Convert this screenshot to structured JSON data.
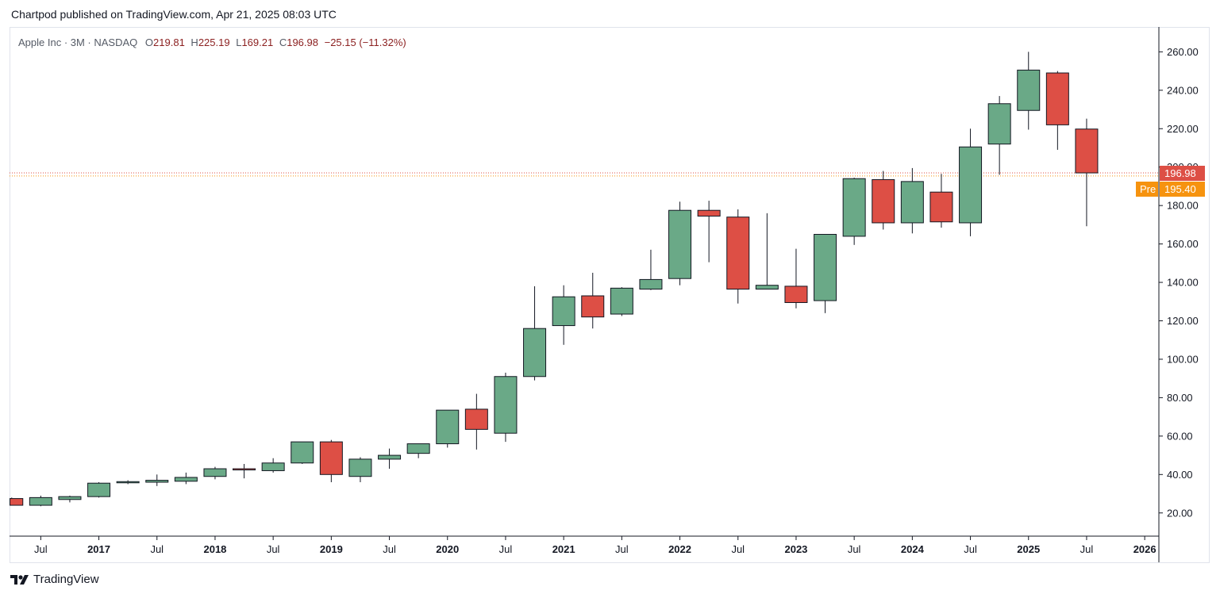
{
  "header": {
    "publisher_text": "Chartpod published on TradingView.com, Apr 21, 2025 08:03 UTC"
  },
  "legend": {
    "symbol": "Apple Inc · 3M · NASDAQ",
    "o_label": "O",
    "open": "219.81",
    "h_label": "H",
    "high": "225.19",
    "l_label": "L",
    "low": "169.21",
    "c_label": "C",
    "close": "196.98",
    "change": "−25.15 (−11.32%)"
  },
  "price_badges": {
    "last": "196.98",
    "pre_label": "Pre",
    "pre": "195.40"
  },
  "footer": {
    "brand": "TradingView"
  },
  "colors": {
    "up": "#6aa987",
    "down": "#dd4f45",
    "grid_border": "#e0e3eb",
    "pre": "#f6930f"
  },
  "chart_data": {
    "type": "candlestick",
    "title": "Apple Inc · 3M · NASDAQ",
    "ylim": [
      10,
      270
    ],
    "y_ticks": [
      20,
      40,
      60,
      80,
      100,
      120,
      140,
      160,
      180,
      200,
      220,
      240,
      260
    ],
    "y_tick_labels": [
      "20.00",
      "40.00",
      "60.00",
      "80.00",
      "100.00",
      "120.00",
      "140.00",
      "160.00",
      "180.00",
      "200.00",
      "220.00",
      "240.00",
      "260.00"
    ],
    "last_price": 196.98,
    "pre_price": 195.4,
    "x_labels": [
      {
        "label": "Jul",
        "pos": 1,
        "year": false
      },
      {
        "label": "2017",
        "pos": 3,
        "year": true
      },
      {
        "label": "Jul",
        "pos": 5,
        "year": false
      },
      {
        "label": "2018",
        "pos": 7,
        "year": true
      },
      {
        "label": "Jul",
        "pos": 9,
        "year": false
      },
      {
        "label": "2019",
        "pos": 11,
        "year": true
      },
      {
        "label": "Jul",
        "pos": 13,
        "year": false
      },
      {
        "label": "2020",
        "pos": 15,
        "year": true
      },
      {
        "label": "Jul",
        "pos": 17,
        "year": false
      },
      {
        "label": "2021",
        "pos": 19,
        "year": true
      },
      {
        "label": "Jul",
        "pos": 21,
        "year": false
      },
      {
        "label": "2022",
        "pos": 23,
        "year": true
      },
      {
        "label": "Jul",
        "pos": 25,
        "year": false
      },
      {
        "label": "2023",
        "pos": 27,
        "year": true
      },
      {
        "label": "Jul",
        "pos": 29,
        "year": false
      },
      {
        "label": "2024",
        "pos": 31,
        "year": true
      },
      {
        "label": "Jul",
        "pos": 33,
        "year": false
      },
      {
        "label": "2025",
        "pos": 35,
        "year": true
      },
      {
        "label": "Jul",
        "pos": 37,
        "year": false
      },
      {
        "label": "2026",
        "pos": 39,
        "year": true
      }
    ],
    "candles": [
      {
        "period": "2016 Q1",
        "open": 27.5,
        "high": 28.0,
        "low": 24.0,
        "close": 24.0
      },
      {
        "period": "2016 Q2",
        "open": 24.0,
        "high": 29.0,
        "low": 23.5,
        "close": 28.0
      },
      {
        "period": "2016 Q3",
        "open": 27.0,
        "high": 29.0,
        "low": 25.5,
        "close": 28.5
      },
      {
        "period": "2016 Q4",
        "open": 28.5,
        "high": 36.0,
        "low": 28.0,
        "close": 35.5
      },
      {
        "period": "2017 Q1",
        "open": 36.0,
        "high": 37.0,
        "low": 35.0,
        "close": 36.3
      },
      {
        "period": "2017 Q2",
        "open": 36.0,
        "high": 40.0,
        "low": 34.0,
        "close": 37.0
      },
      {
        "period": "2017 Q3",
        "open": 36.5,
        "high": 41.0,
        "low": 35.0,
        "close": 38.5
      },
      {
        "period": "2017 Q4",
        "open": 39.0,
        "high": 44.0,
        "low": 37.5,
        "close": 43.0
      },
      {
        "period": "2018 Q1",
        "open": 43.0,
        "high": 45.5,
        "low": 38.0,
        "close": 42.5
      },
      {
        "period": "2018 Q2",
        "open": 42.0,
        "high": 48.5,
        "low": 41.0,
        "close": 46.0
      },
      {
        "period": "2018 Q3",
        "open": 46.0,
        "high": 57.0,
        "low": 45.5,
        "close": 57.0
      },
      {
        "period": "2018 Q4",
        "open": 57.0,
        "high": 58.0,
        "low": 36.0,
        "close": 40.0
      },
      {
        "period": "2019 Q1",
        "open": 39.0,
        "high": 49.0,
        "low": 36.0,
        "close": 48.0
      },
      {
        "period": "2019 Q2",
        "open": 48.0,
        "high": 53.5,
        "low": 43.0,
        "close": 50.0
      },
      {
        "period": "2019 Q3",
        "open": 51.0,
        "high": 56.0,
        "low": 48.5,
        "close": 56.0
      },
      {
        "period": "2019 Q4",
        "open": 56.0,
        "high": 73.5,
        "low": 54.0,
        "close": 73.5
      },
      {
        "period": "2020 Q1",
        "open": 74.0,
        "high": 82.0,
        "low": 53.0,
        "close": 63.5
      },
      {
        "period": "2020 Q2",
        "open": 61.5,
        "high": 93.0,
        "low": 57.0,
        "close": 91.0
      },
      {
        "period": "2020 Q3",
        "open": 91.0,
        "high": 138.0,
        "low": 89.0,
        "close": 116.0
      },
      {
        "period": "2020 Q4",
        "open": 117.5,
        "high": 138.5,
        "low": 107.5,
        "close": 132.5
      },
      {
        "period": "2021 Q1",
        "open": 133.0,
        "high": 145.0,
        "low": 116.0,
        "close": 122.0
      },
      {
        "period": "2021 Q2",
        "open": 123.5,
        "high": 137.5,
        "low": 122.5,
        "close": 137.0
      },
      {
        "period": "2021 Q3",
        "open": 136.5,
        "high": 157.0,
        "low": 136.0,
        "close": 141.5
      },
      {
        "period": "2021 Q4",
        "open": 142.0,
        "high": 182.0,
        "low": 138.5,
        "close": 177.5
      },
      {
        "period": "2022 Q1",
        "open": 177.5,
        "high": 182.5,
        "low": 150.5,
        "close": 174.5
      },
      {
        "period": "2022 Q2",
        "open": 174.0,
        "high": 178.0,
        "low": 129.0,
        "close": 136.5
      },
      {
        "period": "2022 Q3",
        "open": 136.5,
        "high": 176.0,
        "low": 136.5,
        "close": 138.5
      },
      {
        "period": "2022 Q4",
        "open": 138.0,
        "high": 157.5,
        "low": 126.5,
        "close": 129.5
      },
      {
        "period": "2023 Q1",
        "open": 130.5,
        "high": 165.0,
        "low": 124.0,
        "close": 165.0
      },
      {
        "period": "2023 Q2",
        "open": 164.0,
        "high": 194.5,
        "low": 159.5,
        "close": 194.0
      },
      {
        "period": "2023 Q3",
        "open": 193.5,
        "high": 198.0,
        "low": 167.5,
        "close": 171.0
      },
      {
        "period": "2023 Q4",
        "open": 171.0,
        "high": 199.5,
        "low": 165.5,
        "close": 192.5
      },
      {
        "period": "2024 Q1",
        "open": 187.0,
        "high": 196.5,
        "low": 168.5,
        "close": 171.5
      },
      {
        "period": "2024 Q2",
        "open": 171.0,
        "high": 220.0,
        "low": 164.0,
        "close": 210.5
      },
      {
        "period": "2024 Q3",
        "open": 212.0,
        "high": 237.0,
        "low": 196.0,
        "close": 233.0
      },
      {
        "period": "2024 Q4",
        "open": 229.5,
        "high": 260.0,
        "low": 219.5,
        "close": 250.5
      },
      {
        "period": "2025 Q1",
        "open": 249.0,
        "high": 250.0,
        "low": 209.0,
        "close": 222.0
      },
      {
        "period": "2025 Q2",
        "open": 219.81,
        "high": 225.19,
        "low": 169.21,
        "close": 196.98
      }
    ]
  }
}
